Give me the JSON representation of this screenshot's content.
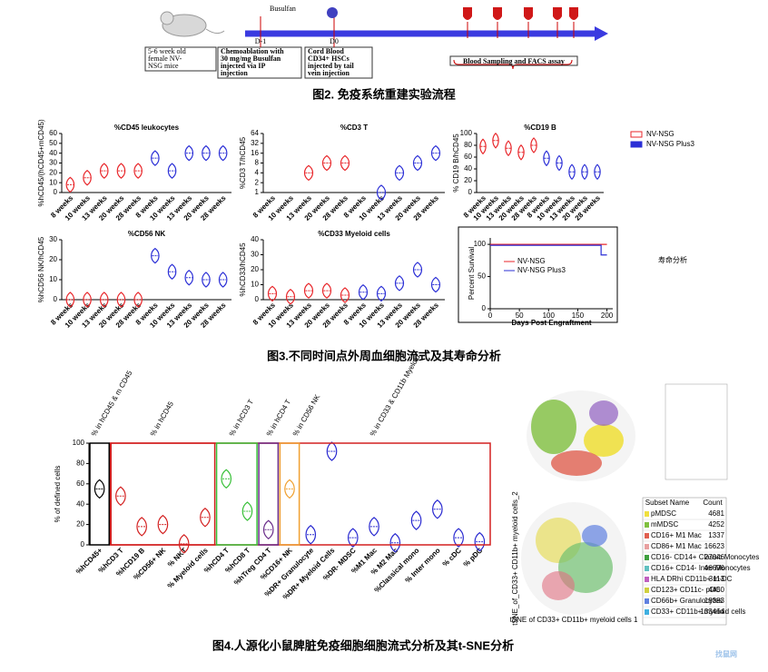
{
  "figure2": {
    "mouse_label": [
      "5-6 week old",
      "female NV-",
      "NSG mice"
    ],
    "drug": "Busulfan",
    "days": [
      "D-1",
      "D0"
    ],
    "chemo_label": [
      "Chemoablation with",
      "30 mg/mg Busulfan",
      "injected via IP",
      "injection"
    ],
    "cord_label": [
      "Cord Blood",
      "CD34+ HSCs",
      "injected by tail",
      "vein injection"
    ],
    "weeks": [
      "W8",
      "W10",
      "W13",
      "W20",
      "W28"
    ],
    "sampling": "Blood Sampling and FACS assay",
    "caption": "图2. 免疫系统重建实验流程"
  },
  "chart_data": [
    {
      "type": "violin",
      "title": "%CD45 leukocytes",
      "ylabel": "%hCD45/(hCD45+mCD45)",
      "categories": [
        "8 weeks",
        "10 weeks",
        "13 weeks",
        "20 weeks",
        "28 weeks"
      ],
      "series": [
        {
          "name": "NV-NSG",
          "color": "#e8262a",
          "values": [
            8,
            15,
            22,
            22,
            22
          ]
        },
        {
          "name": "NV-NSG Plus3",
          "color": "#2b2fd6",
          "values": [
            35,
            22,
            40,
            40,
            40
          ]
        }
      ],
      "ylim": [
        0,
        60
      ],
      "yticks": [
        0,
        10,
        20,
        30,
        40,
        50,
        60
      ]
    },
    {
      "type": "violin",
      "title": "%CD3 T",
      "ylabel": "%CD3 T/hCD45",
      "categories": [
        "8 weeks",
        "10 weeks",
        "13 weeks",
        "20 weeks",
        "28 weeks"
      ],
      "series": [
        {
          "name": "NV-NSG",
          "color": "#e8262a",
          "values": [
            null,
            null,
            4,
            8,
            8
          ]
        },
        {
          "name": "NV-NSG Plus3",
          "color": "#2b2fd6",
          "values": [
            null,
            1,
            4,
            8,
            16
          ]
        }
      ],
      "log_base": 2,
      "ylim": [
        1,
        64
      ],
      "yticks": [
        1,
        2,
        4,
        8,
        16,
        32,
        64
      ]
    },
    {
      "type": "violin",
      "title": "%CD19 B",
      "ylabel": "% CD19 B/hCD45",
      "categories": [
        "8 weeks",
        "10 weeks",
        "13 weeks",
        "20 weeks",
        "28 weeks"
      ],
      "series": [
        {
          "name": "NV-NSG",
          "color": "#e8262a",
          "values": [
            78,
            88,
            75,
            68,
            80
          ]
        },
        {
          "name": "NV-NSG Plus3",
          "color": "#2b2fd6",
          "values": [
            58,
            50,
            35,
            35,
            35
          ]
        }
      ],
      "ylim": [
        0,
        100
      ],
      "yticks": [
        0,
        20,
        40,
        60,
        80,
        100
      ],
      "legend": "outside-right"
    },
    {
      "type": "violin",
      "title": "%CD56 NK",
      "ylabel": "%hCD56 NK/hCD45",
      "categories": [
        "8 weeks",
        "10 weeks",
        "13 weeks",
        "20 weeks",
        "28 weeks"
      ],
      "series": [
        {
          "name": "NV-NSG",
          "color": "#e8262a",
          "values": [
            0,
            0,
            0,
            0,
            0
          ]
        },
        {
          "name": "NV-NSG Plus3",
          "color": "#2b2fd6",
          "values": [
            22,
            14,
            11,
            10,
            10
          ]
        }
      ],
      "ylim": [
        0,
        30
      ],
      "yticks": [
        0,
        10,
        20,
        30
      ]
    },
    {
      "type": "violin",
      "title": "%CD33 Myeloid cells",
      "ylabel": "%hCD33/hCD45",
      "categories": [
        "8 weeks",
        "10 weeks",
        "13 weeks",
        "20 weeks",
        "28 weeks"
      ],
      "series": [
        {
          "name": "NV-NSG",
          "color": "#e8262a",
          "values": [
            4,
            2,
            6,
            6,
            3
          ]
        },
        {
          "name": "NV-NSG Plus3",
          "color": "#2b2fd6",
          "values": [
            5,
            4,
            11,
            20,
            10
          ]
        }
      ],
      "ylim": [
        0,
        40
      ],
      "yticks": [
        0,
        10,
        20,
        30,
        40
      ]
    },
    {
      "type": "line",
      "xlabel": "Days Post Engraftment",
      "ylabel": "Percent Survival",
      "series": [
        {
          "name": "NV-NSG",
          "color": "#e8262a",
          "x": [
            0,
            200
          ],
          "values": [
            100,
            100
          ]
        },
        {
          "name": "NV-NSG Plus3",
          "color": "#2b2fd6",
          "x": [
            0,
            190,
            190,
            200
          ],
          "values": [
            100,
            100,
            85,
            85
          ]
        }
      ],
      "xlim": [
        0,
        210
      ],
      "xticks": [
        0,
        50,
        100,
        150,
        200
      ],
      "ylim": [
        0,
        110
      ],
      "yticks": [
        0,
        50,
        100
      ],
      "legend": "center"
    },
    {
      "type": "violin",
      "ylabel": "% of defined cells",
      "categories": [
        "%hCD45+",
        "%hCD3 T",
        "%hCD19 B",
        "%CD56+ NK",
        "% NKT",
        "% Myeloid cells",
        "%hCD4 T",
        "%hCD8 T",
        "%hTreg CD4 T",
        "%CD16+ NK",
        "%DR+ Granulocyte",
        "%DR+ Myeloid Cells",
        "%DR- MDSC",
        "%M1 Mac",
        "% M2 Mac",
        "%Classical mono",
        "% Inter mono",
        "% cDC",
        "% pDC"
      ],
      "values": [
        55,
        48,
        18,
        20,
        1,
        27,
        65,
        33,
        15,
        55,
        10,
        92,
        7,
        18,
        2,
        24,
        35,
        7,
        3
      ],
      "colors": [
        "#000000",
        "#d32020",
        "#d32020",
        "#d32020",
        "#d32020",
        "#d32020",
        "#38c038",
        "#38c038",
        "#6a2c8a",
        "#f0a030",
        "#2828d0",
        "#2828d0",
        "#2828d0",
        "#2828d0",
        "#2828d0",
        "#2828d0",
        "#2828d0",
        "#2828d0",
        "#2828d0"
      ],
      "groups": [
        "% in hCD45 & m CD45",
        "% in hCD45",
        "% in hCD3 T",
        "% in hCD4 T",
        "% in CD56 NK",
        "% in CD33 & CD11b Myeloid"
      ],
      "ylim": [
        0,
        100
      ],
      "yticks": [
        0,
        20,
        40,
        60,
        80,
        100
      ]
    }
  ],
  "figure3": {
    "side_label": "寿命分析",
    "caption": "图3.不同时间点外周血细胞流式及其寿命分析"
  },
  "figure4": {
    "tsne_axis": [
      "tSNE of CD33+ CD11b+ myeloid cells 1",
      "tSNE_of_CD33+ CD11b+ myeloid cells_2"
    ],
    "tsne_legend": {
      "header": [
        "Subset Name",
        "Count"
      ],
      "rows": [
        [
          "pMDSC",
          "4681"
        ],
        [
          "mMDSC",
          "4252"
        ],
        [
          "CD16+ M1 Mac",
          "1337"
        ],
        [
          "CD86+ M1 Mac",
          "16623"
        ],
        [
          "CD16- CD14+ Classic Monocytes",
          "27046"
        ],
        [
          "CD16+ CD14- Inter Monocytes",
          "46696"
        ],
        [
          "HLA DRhi CD11b+ m-DC",
          "3113"
        ],
        [
          "CD123+ CD11c- pDC",
          "4460"
        ],
        [
          "CD66b+ Granulocytes",
          "18383"
        ],
        [
          "CD33+ CD11b+ myeloid cells",
          "133464"
        ]
      ]
    },
    "caption": "图4.人源化小鼠脾脏免疫细胞细胞流式分析及其t-SNE分析"
  },
  "watermark": "找鼠网"
}
